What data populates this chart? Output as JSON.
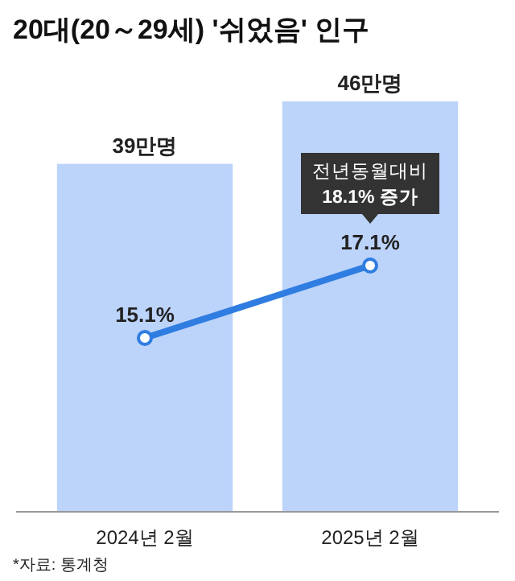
{
  "chart_data": {
    "type": "bar",
    "title": "20대(20～29세) '쉬었음' 인구",
    "categories": [
      "2024년 2월",
      "2025년 2월"
    ],
    "series": [
      {
        "color": "#bcd3fa",
        "values": [
          39,
          46
        ],
        "value_labels": [
          "39만명",
          "46만명"
        ]
      },
      {
        "type": "line",
        "axis": "y2",
        "color": "#2f7de1",
        "marker": "circle",
        "values": [
          15.1,
          17.1
        ],
        "value_labels": [
          "15.1%",
          "17.1%"
        ]
      }
    ],
    "annotations": [
      "전년동월대비\n18.1% 증가",
      "*자료: 통계청"
    ]
  }
}
